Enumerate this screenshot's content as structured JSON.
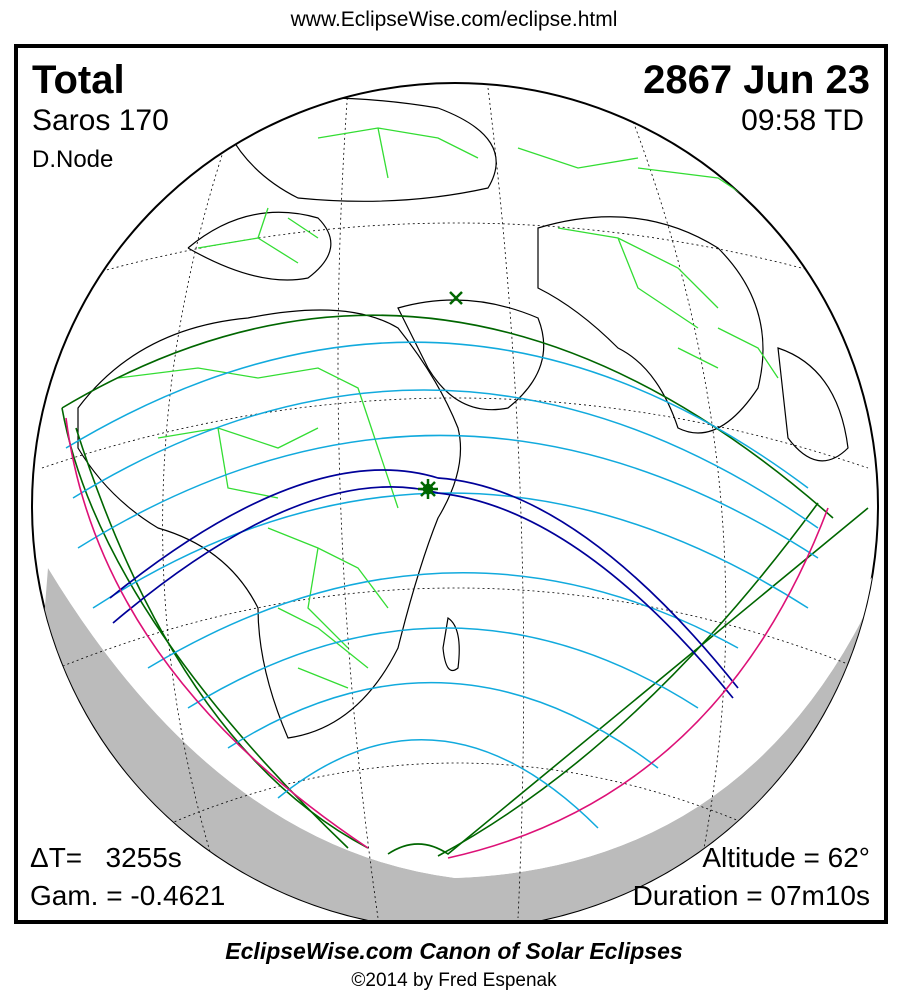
{
  "header": {
    "url": "www.EclipseWise.com/eclipse.html"
  },
  "eclipse": {
    "type": "Total",
    "saros": "Saros 170",
    "node": "D.Node",
    "date": "2867 Jun 23",
    "time": "09:58 TD",
    "delta_t": "ΔT=   3255s",
    "gamma": "Gam. = -0.4621",
    "altitude": "Altitude = 62°",
    "duration": "Duration = 07m10s"
  },
  "footer": {
    "canon": "EclipseWise.com Canon of Solar Eclipses",
    "copyright": "©2014 by Fred Espenak"
  },
  "colors": {
    "land_outline": "#000000",
    "country_borders": "#33dd33",
    "penumbral_limits": "#006600",
    "obscuration_lines": "#11aadd",
    "central_path": "#000099",
    "rise_set_curve": "#dd1177",
    "night_shade": "#bbbbbb"
  },
  "icons": {
    "greatest_eclipse": "star-icon",
    "subsolar_point": "cross-icon"
  }
}
